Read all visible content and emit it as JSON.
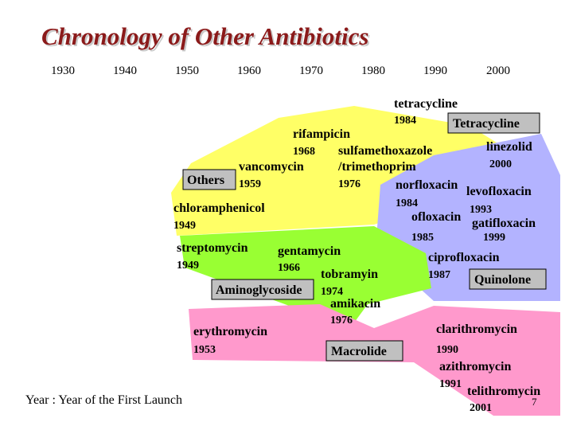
{
  "title": "Chronology of Other Antibiotics",
  "timeline": [
    "1930",
    "1940",
    "1950",
    "1960",
    "1970",
    "1980",
    "1990",
    "2000"
  ],
  "groups": [
    "Others",
    "Tetracycline",
    "Aminoglycoside",
    "Macrolide",
    "Quinolone"
  ],
  "drugs": [
    {
      "name": "tetracycline",
      "year": "1984"
    },
    {
      "name": "rifampicin",
      "year": "1968"
    },
    {
      "name": "sulfamethoxazole",
      "line2": "/trimethoprim",
      "year": "1976"
    },
    {
      "name": "vancomycin",
      "year": "1959"
    },
    {
      "name": "linezolid",
      "year": "2000"
    },
    {
      "name": "chloramphenicol",
      "year": "1949"
    },
    {
      "name": "norfloxacin",
      "year": "1984"
    },
    {
      "name": "levofloxacin",
      "year": "1993"
    },
    {
      "name": "ofloxacin",
      "year": "1985"
    },
    {
      "name": "gatifloxacin",
      "year": "1999"
    },
    {
      "name": "ciprofloxacin",
      "year": "1987"
    },
    {
      "name": "streptomycin",
      "year": "1949"
    },
    {
      "name": "gentamycin",
      "year": "1966"
    },
    {
      "name": "tobramyin",
      "year": "1974"
    },
    {
      "name": "amikacin",
      "year": "1976"
    },
    {
      "name": "erythromycin",
      "year": "1953"
    },
    {
      "name": "clarithromycin",
      "year": "1990"
    },
    {
      "name": "azithromycin",
      "year": "1991"
    },
    {
      "name": "telithromycin",
      "year": "2001"
    }
  ],
  "footnote": "Year : Year of the First Launch",
  "page_number": "7"
}
